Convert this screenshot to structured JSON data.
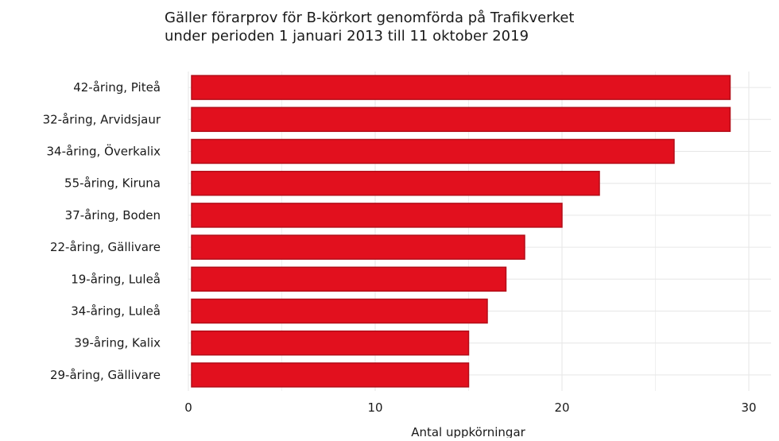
{
  "chart_data": {
    "type": "bar",
    "orientation": "horizontal",
    "title_lines": [
      "Gäller förarprov för B-körkort genomförda på Trafikverket",
      "under perioden 1 januari 2013 till 11 oktober 2019"
    ],
    "xlabel": "Antal uppkörningar",
    "ylabel": "",
    "categories": [
      "42-åring, Piteå",
      "32-åring, Arvidsjaur",
      "34-åring, Överkalix",
      "55-åring, Kiruna",
      "37-åring, Boden",
      "22-åring, Gällivare",
      "19-åring, Luleå",
      "34-åring, Luleå",
      "39-åring, Kalix",
      "29-åring, Gällivare"
    ],
    "values": [
      29,
      29,
      26,
      22,
      20,
      18,
      17,
      16,
      15,
      15
    ],
    "xlim": [
      0,
      30
    ],
    "xticks": [
      0,
      10,
      20,
      30
    ],
    "bar_color": "#e2101e",
    "bar_edge_color": "#b30d18",
    "grid": true,
    "grid_color": "#e6e6e6",
    "legend": "none"
  }
}
